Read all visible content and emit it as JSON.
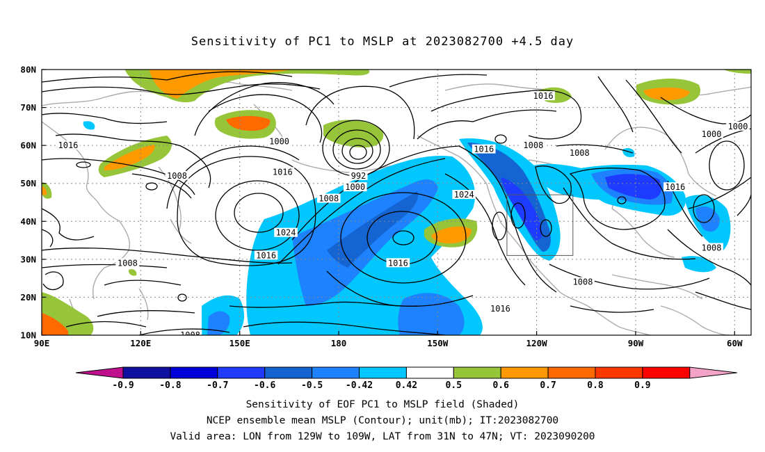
{
  "title": "Sensitivity of PC1 to MSLP at 2023082700 +4.5 day",
  "map": {
    "lat_ticks": [
      "80N",
      "70N",
      "60N",
      "50N",
      "40N",
      "30N",
      "20N",
      "10N"
    ],
    "lon_ticks": [
      "90E",
      "120E",
      "150E",
      "180",
      "150W",
      "120W",
      "90W",
      "60W"
    ],
    "extent": {
      "lon_min": 90,
      "lon_max": 305,
      "lat_min": 10,
      "lat_max": 80
    },
    "valid_box": {
      "lon_from": 231,
      "lon_to": 251,
      "lat_from": 31,
      "lat_to": 47
    },
    "contour_labels": [
      {
        "text": "1016",
        "lon": 98,
        "lat": 60
      },
      {
        "text": "1008",
        "lon": 131,
        "lat": 52
      },
      {
        "text": "1000",
        "lon": 162,
        "lat": 61
      },
      {
        "text": "1016",
        "lon": 163,
        "lat": 53
      },
      {
        "text": "992",
        "lon": 186,
        "lat": 52
      },
      {
        "text": "1000",
        "lon": 185,
        "lat": 49
      },
      {
        "text": "1008",
        "lon": 177,
        "lat": 46
      },
      {
        "text": "1024",
        "lon": 164,
        "lat": 37
      },
      {
        "text": "1016",
        "lon": 158,
        "lat": 31
      },
      {
        "text": "1008",
        "lon": 116,
        "lat": 29
      },
      {
        "text": "1016",
        "lon": 198,
        "lat": 29
      },
      {
        "text": "1024",
        "lon": 218,
        "lat": 47
      },
      {
        "text": "1016",
        "lon": 224,
        "lat": 59
      },
      {
        "text": "1008",
        "lon": 239,
        "lat": 60
      },
      {
        "text": "1008",
        "lon": 253,
        "lat": 58
      },
      {
        "text": "1016",
        "lon": 242,
        "lat": 73
      },
      {
        "text": "1016",
        "lon": 282,
        "lat": 49
      },
      {
        "text": "1000",
        "lon": 293,
        "lat": 63
      },
      {
        "text": "1000",
        "lon": 301,
        "lat": 65
      },
      {
        "text": "1008",
        "lon": 293,
        "lat": 33
      },
      {
        "text": "1008",
        "lon": 254,
        "lat": 24
      },
      {
        "text": "1016",
        "lon": 229,
        "lat": 17
      },
      {
        "text": "1008",
        "lon": 135,
        "lat": 10
      }
    ]
  },
  "colorbar": {
    "labels": [
      "-0.9",
      "-0.8",
      "-0.7",
      "-0.6",
      "-0.5",
      "-0.42",
      "0.42",
      "0.5",
      "0.6",
      "0.7",
      "0.8",
      "0.9"
    ],
    "colors": [
      "#1010a0",
      "#0000d8",
      "#1e3cff",
      "#1464d2",
      "#1e82ff",
      "#00c8ff",
      "#ffffff",
      "#97c53a",
      "#ff9900",
      "#ff6a00",
      "#ff3800",
      "#ff0000"
    ],
    "under_color": "#c0108c",
    "over_color": "#f4a3c8"
  },
  "legend": {
    "line1": "Sensitivity of EOF PC1 to MSLP field (Shaded)",
    "line2": "NCEP ensemble mean MSLP (Contour); unit(mb); IT:2023082700",
    "line3": "Valid area: LON from 129W to 109W, LAT from 31N to 47N; VT: 2023090200"
  }
}
